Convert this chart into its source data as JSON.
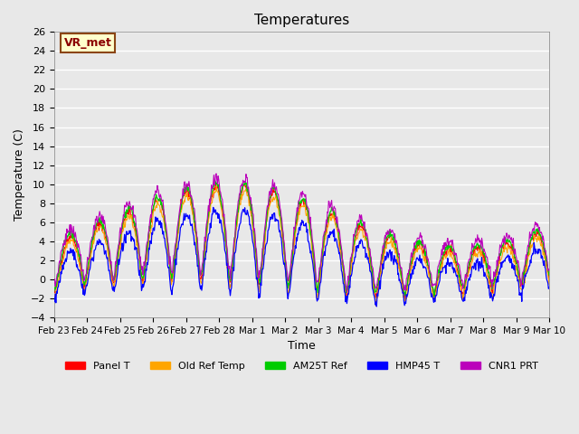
{
  "title": "Temperatures",
  "xlabel": "Time",
  "ylabel": "Temperature (C)",
  "ylim": [
    -4,
    26
  ],
  "yticks": [
    -4,
    -2,
    0,
    2,
    4,
    6,
    8,
    10,
    12,
    14,
    16,
    18,
    20,
    22,
    24,
    26
  ],
  "annotation_text": "VR_met",
  "annotation_bg": "#FFFFCC",
  "annotation_border": "#8B4513",
  "lines": [
    {
      "label": "Panel T",
      "color": "#FF0000"
    },
    {
      "label": "Old Ref Temp",
      "color": "#FFA500"
    },
    {
      "label": "AM25T Ref",
      "color": "#00CC00"
    },
    {
      "label": "HMP45 T",
      "color": "#0000FF"
    },
    {
      "label": "CNR1 PRT",
      "color": "#BB00BB"
    }
  ],
  "xtick_labels": [
    "Feb 23",
    "Feb 24",
    "Feb 25",
    "Feb 26",
    "Feb 27",
    "Feb 28",
    "Mar 1",
    "Mar 2",
    "Mar 3",
    "Mar 4",
    "Mar 5",
    "Mar 6",
    "Mar 7",
    "Mar 8",
    "Mar 9",
    "Mar 10"
  ],
  "background_color": "#E8E8E8",
  "plot_bg_color": "#E8E8E8",
  "grid_color": "#FFFFFF",
  "n_points": 816,
  "days": 17,
  "start_day": 0
}
